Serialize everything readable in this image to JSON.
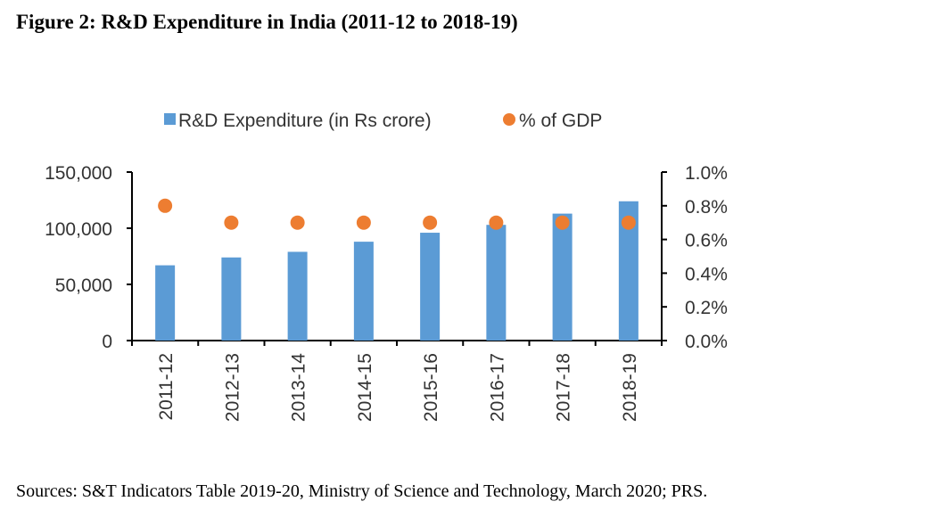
{
  "title": "Figure 2: R&D Expenditure in India (2011-12 to 2018-19)",
  "source": "Sources: S&T Indicators Table 2019-20, Ministry of Science and Technology, March 2020; PRS.",
  "chart_data": {
    "type": "bar",
    "title": "Figure 2: R&D Expenditure in India (2011-12 to 2018-19)",
    "xlabel": "",
    "ylabel": "",
    "categories": [
      "2011-12",
      "2012-13",
      "2013-14",
      "2014-15",
      "2015-16",
      "2016-17",
      "2017-18",
      "2018-19"
    ],
    "series": [
      {
        "name": "R&D Expenditure (in Rs crore)",
        "type": "bar",
        "axis": "left",
        "color": "#5B9BD5",
        "values": [
          67000,
          74000,
          79000,
          88000,
          96000,
          103000,
          113000,
          124000
        ]
      },
      {
        "name": "% of GDP",
        "type": "scatter",
        "axis": "right",
        "color": "#ED7D31",
        "values": [
          0.8,
          0.7,
          0.7,
          0.7,
          0.7,
          0.7,
          0.7,
          0.7
        ]
      }
    ],
    "ylim": [
      0,
      150000
    ],
    "y_ticks": [
      "0",
      "50,000",
      "100,000",
      "150,000"
    ],
    "y_tick_values": [
      0,
      50000,
      100000,
      150000
    ],
    "y2lim": [
      0,
      1.0
    ],
    "y2_ticks": [
      "0.0%",
      "0.2%",
      "0.4%",
      "0.6%",
      "0.8%",
      "1.0%"
    ],
    "y2_tick_values": [
      0,
      0.2,
      0.4,
      0.6,
      0.8,
      1.0
    ],
    "legend": [
      "R&D Expenditure (in Rs crore)",
      "% of GDP"
    ],
    "legend_position": "top",
    "grid": false
  }
}
